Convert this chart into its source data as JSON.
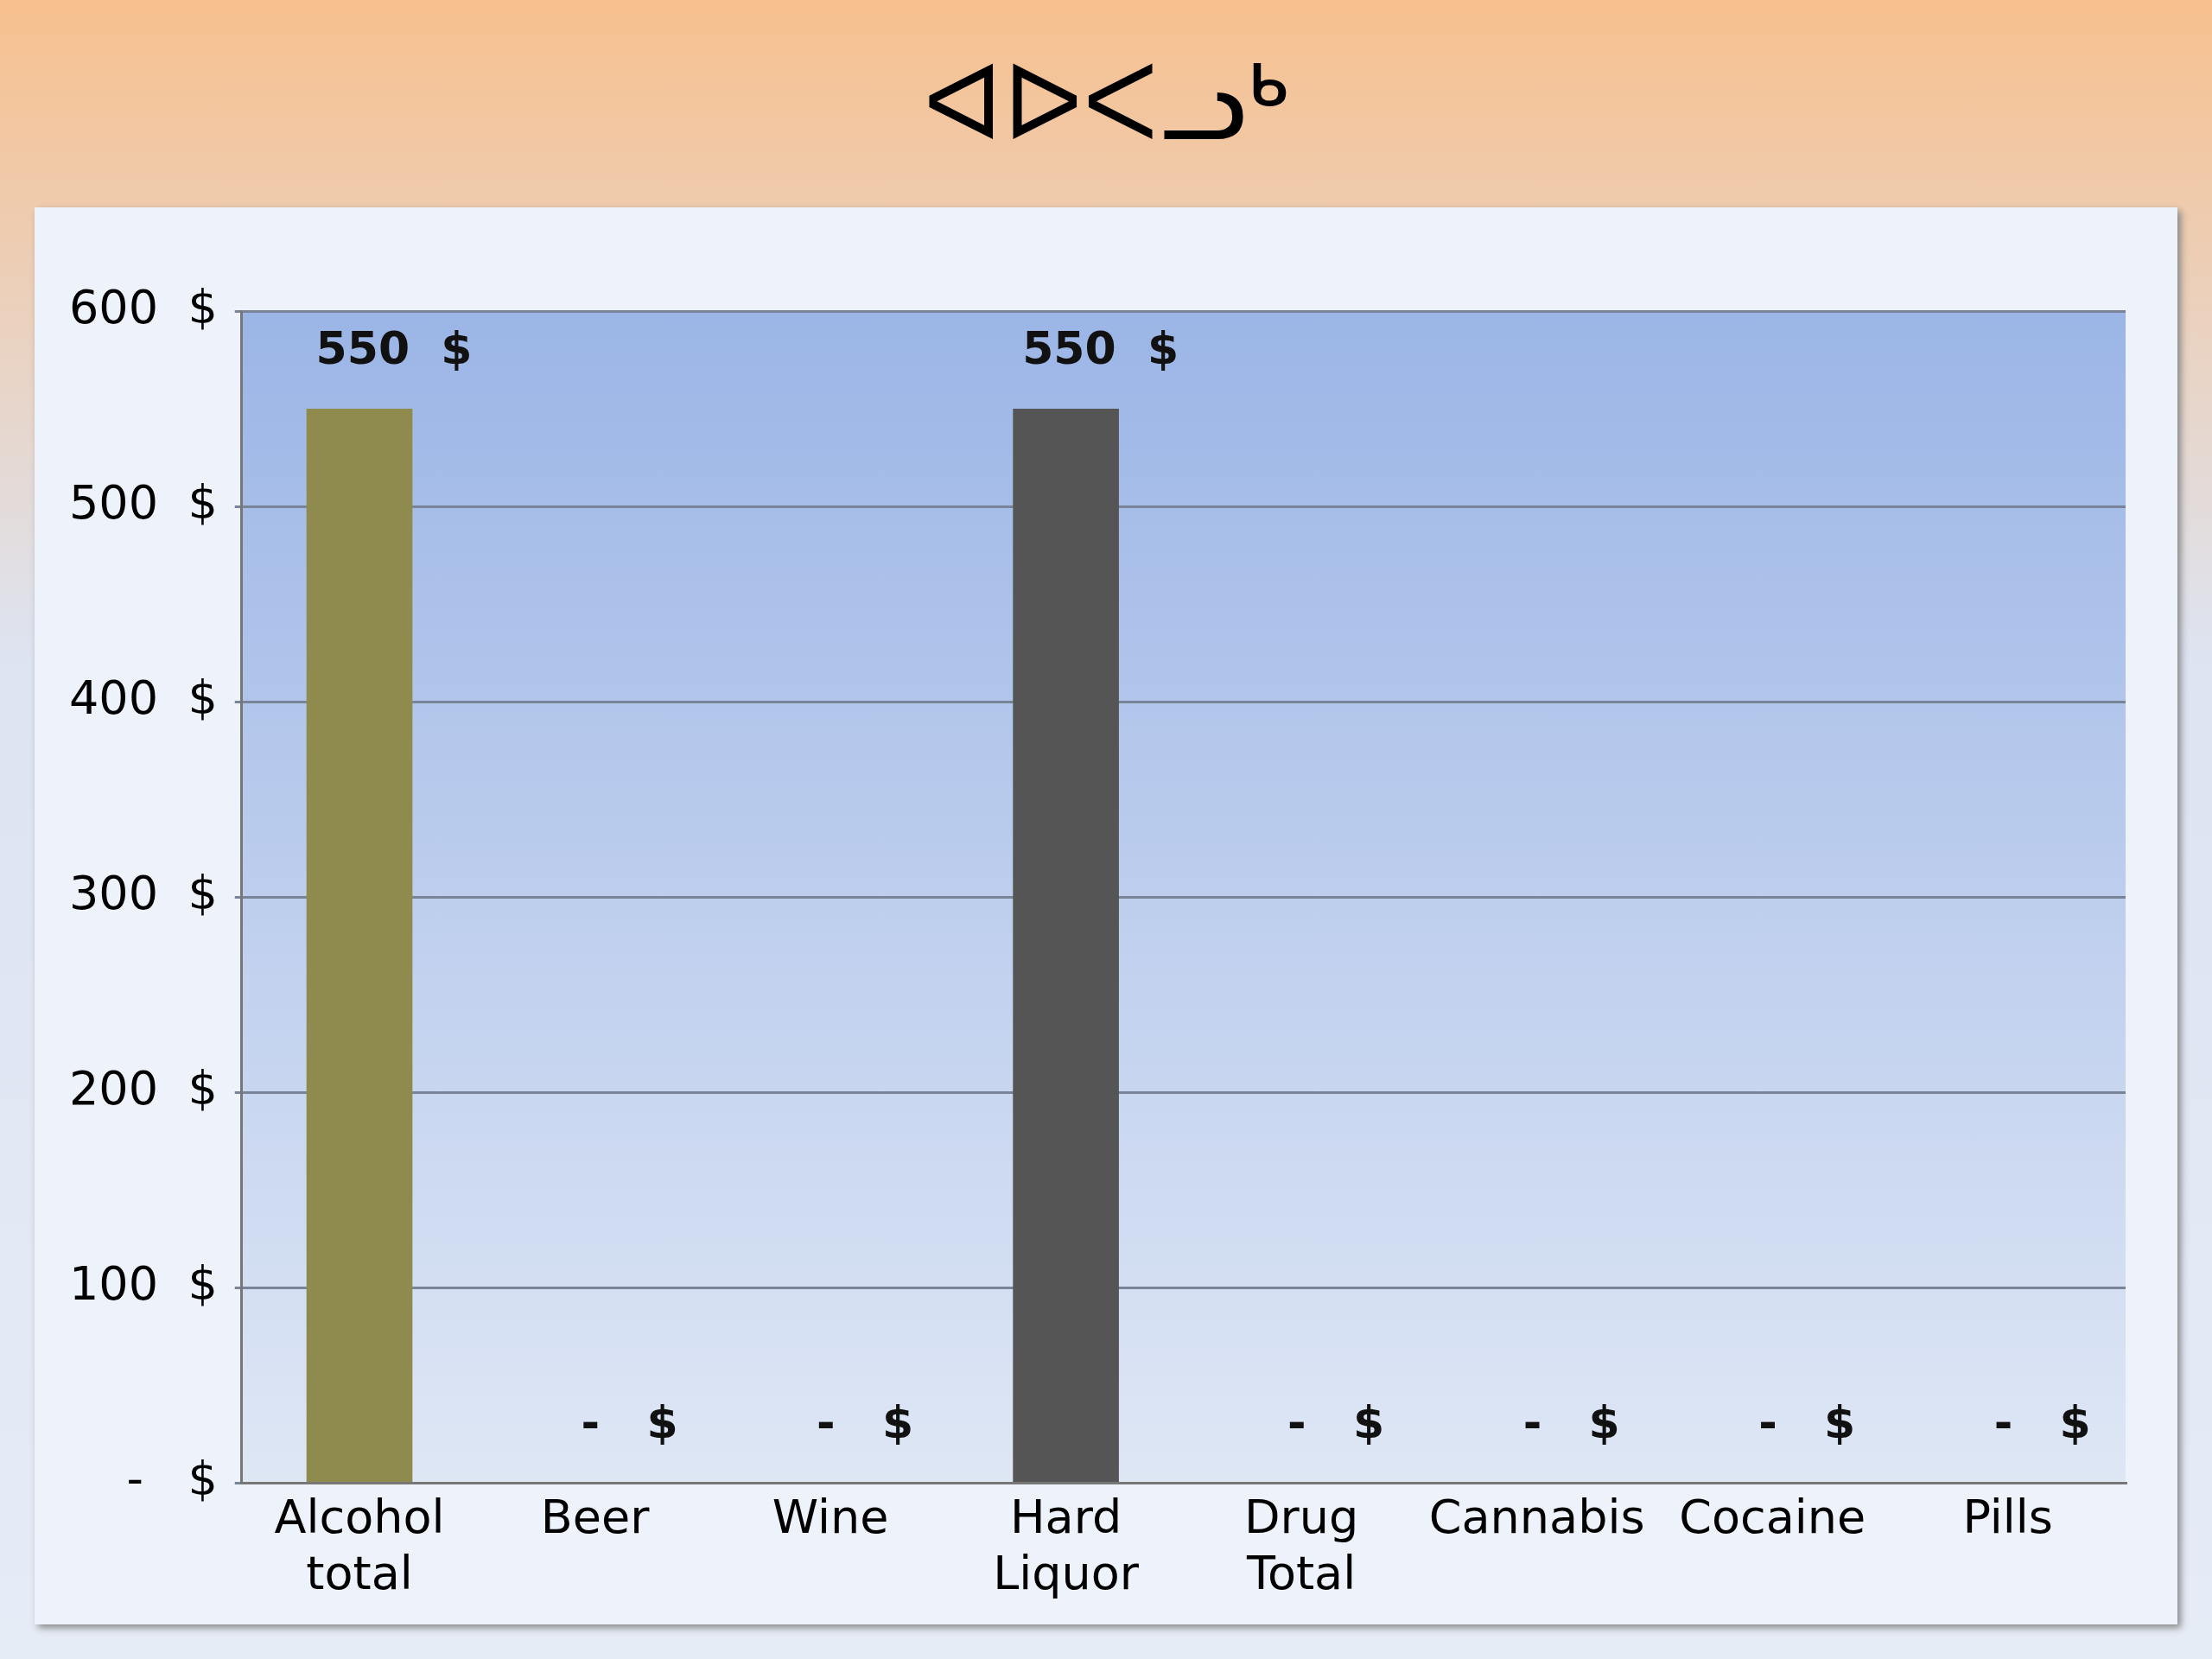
{
  "chart_data": {
    "type": "bar",
    "title": "ᐊᐅᐸᓗᒃ",
    "categories": [
      "Alcohol total",
      "Beer",
      "Wine",
      "Hard Liquor",
      "Drug Total",
      "Cannabis",
      "Cocaine",
      "Pills"
    ],
    "values": [
      550,
      0,
      0,
      550,
      0,
      0,
      0,
      0
    ],
    "colors": [
      "#8f8a4e",
      "#e8a3a3",
      "#e8a3a3",
      "#555555",
      "#e8a3a3",
      "#e8a3a3",
      "#e8a3a3",
      "#e8a3a3"
    ],
    "value_labels": [
      "550  $",
      "-   $",
      "-   $",
      "550  $",
      "-   $",
      "-   $",
      "-   $",
      "-   $"
    ],
    "ylim": [
      0,
      600
    ],
    "yticks": [
      {
        "value": 0,
        "label": "-   $"
      },
      {
        "value": 100,
        "label": "100  $"
      },
      {
        "value": 200,
        "label": "200  $"
      },
      {
        "value": 300,
        "label": "300  $"
      },
      {
        "value": 400,
        "label": "400  $"
      },
      {
        "value": 500,
        "label": "500  $"
      },
      {
        "value": 600,
        "label": "600  $"
      }
    ],
    "grid": "y",
    "legend": false
  }
}
